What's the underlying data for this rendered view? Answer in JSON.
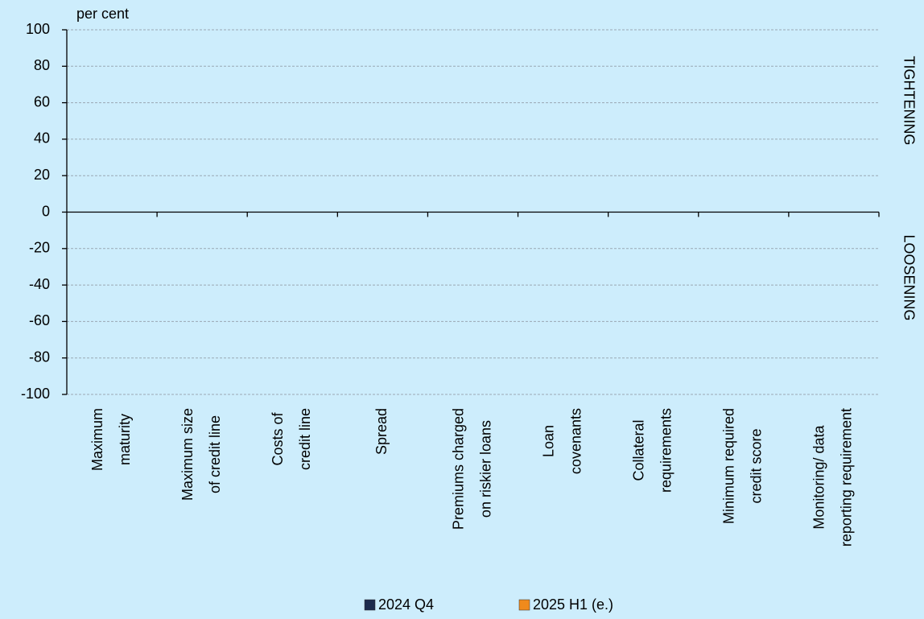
{
  "chart_data": {
    "type": "bar",
    "y_label": "per cent",
    "annotations": [
      "TIGHTENING",
      "LOOSENING"
    ],
    "categories": [
      [
        "Maximum",
        "maturity"
      ],
      [
        "Maximum size",
        "of credit line"
      ],
      [
        "Costs of",
        "credit line"
      ],
      [
        "Spread"
      ],
      [
        "Premiums charged",
        "on riskier loans"
      ],
      [
        "Loan",
        "covenants"
      ],
      [
        "Collateral",
        "requirements"
      ],
      [
        "Minimum required",
        "credit score"
      ],
      [
        "Monitoring/ data",
        "reporting requirement"
      ]
    ],
    "series": [
      {
        "name": "2024 Q4",
        "color": "#1c2a4d",
        "values": [
          0,
          0,
          0,
          0,
          0,
          0,
          0,
          0,
          0
        ]
      },
      {
        "name": "2025 H1 (e.)",
        "color": "#f08a1c",
        "values": [
          0,
          0,
          0,
          0,
          0,
          0,
          0,
          0,
          0
        ]
      }
    ],
    "ylim": [
      -100,
      100
    ],
    "yticks": [
      -100,
      -80,
      -60,
      -40,
      -20,
      0,
      20,
      40,
      60,
      80,
      100
    ],
    "grid": true,
    "legend": "bottom"
  }
}
